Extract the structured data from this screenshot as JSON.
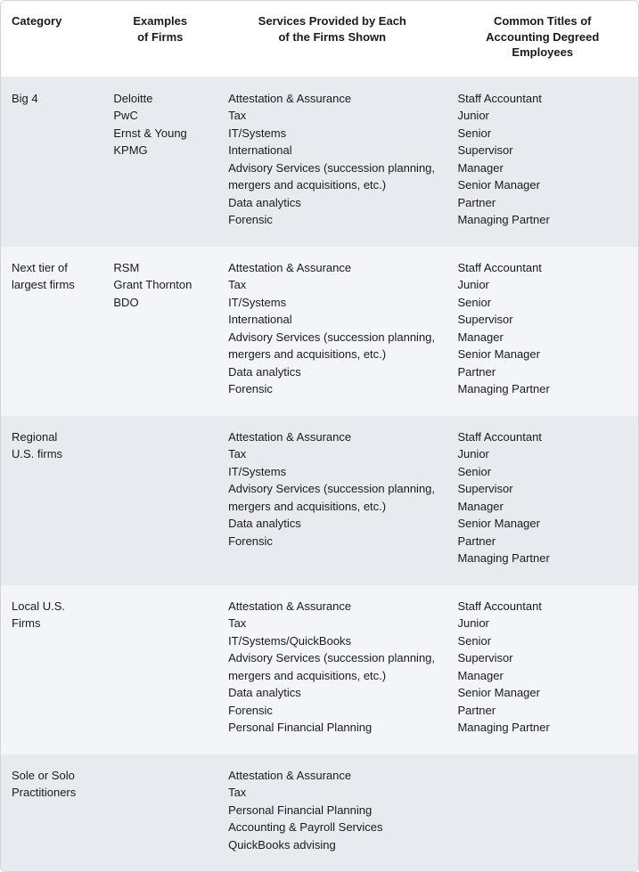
{
  "table": {
    "colors": {
      "border": "#d0d4da",
      "header_bg": "#ffffff",
      "row_odd_bg": "#e7ebf0",
      "row_even_bg": "#f3f5f8",
      "text": "#1a1a1a"
    },
    "typography": {
      "font_family": "Arial, Helvetica, sans-serif",
      "font_size_pt": 10,
      "header_weight": "bold"
    },
    "columns": [
      {
        "label_line1": "Category",
        "label_line2": "",
        "label_line3": "",
        "width_pct": 16,
        "align": "left"
      },
      {
        "label_line1": "Examples",
        "label_line2": "of Firms",
        "label_line3": "",
        "width_pct": 18,
        "align": "center"
      },
      {
        "label_line1": "Services Provided by Each",
        "label_line2": "of the Firms Shown",
        "label_line3": "",
        "width_pct": 36,
        "align": "center"
      },
      {
        "label_line1": "Common Titles of",
        "label_line2": "Accounting Degreed",
        "label_line3": "Employees",
        "width_pct": 30,
        "align": "center"
      }
    ],
    "rows": [
      {
        "category": [
          "Big 4"
        ],
        "firms": [
          "Deloitte",
          "PwC",
          "Ernst & Young",
          "KPMG"
        ],
        "services": [
          "Attestation & Assurance",
          "Tax",
          "IT/Systems",
          "International",
          "Advisory Services (succession planning, mergers and acquisitions, etc.)",
          "Data analytics",
          "Forensic"
        ],
        "titles": [
          "Staff Accountant",
          "Junior",
          "Senior",
          "Supervisor",
          "Manager",
          "Senior Manager",
          "Partner",
          "Managing Partner"
        ]
      },
      {
        "category": [
          "Next tier of",
          "largest firms"
        ],
        "firms": [
          "RSM",
          "Grant Thornton",
          "BDO"
        ],
        "services": [
          "Attestation & Assurance",
          "Tax",
          "IT/Systems",
          "International",
          "Advisory Services (succession planning, mergers and acquisitions, etc.)",
          "Data analytics",
          "Forensic"
        ],
        "titles": [
          "Staff Accountant",
          "Junior",
          "Senior",
          "Supervisor",
          "Manager",
          "Senior Manager",
          "Partner",
          "Managing Partner"
        ]
      },
      {
        "category": [
          "Regional",
          "U.S. firms"
        ],
        "firms": [],
        "services": [
          "Attestation & Assurance",
          "Tax",
          "IT/Systems",
          "Advisory Services (succession planning, mergers and acquisitions, etc.)",
          "Data analytics",
          "Forensic"
        ],
        "titles": [
          "Staff Accountant",
          "Junior",
          "Senior",
          "Supervisor",
          "Manager",
          "Senior Manager",
          "Partner",
          "Managing Partner"
        ]
      },
      {
        "category": [
          "Local U.S.",
          "Firms"
        ],
        "firms": [],
        "services": [
          "Attestation & Assurance",
          "Tax",
          "IT/Systems/QuickBooks",
          "Advisory Services (succession planning, mergers and acquisitions, etc.)",
          "Data analytics",
          "Forensic",
          "Personal Financial Planning"
        ],
        "titles": [
          "Staff Accountant",
          "Junior",
          "Senior",
          "Supervisor",
          "Manager",
          "Senior Manager",
          "Partner",
          "Managing Partner"
        ]
      },
      {
        "category": [
          "Sole or Solo",
          "Practitioners"
        ],
        "firms": [],
        "services": [
          "Attestation & Assurance",
          "Tax",
          "Personal Financial Planning",
          "Accounting & Payroll Services",
          "QuickBooks advising"
        ],
        "titles": []
      }
    ]
  }
}
